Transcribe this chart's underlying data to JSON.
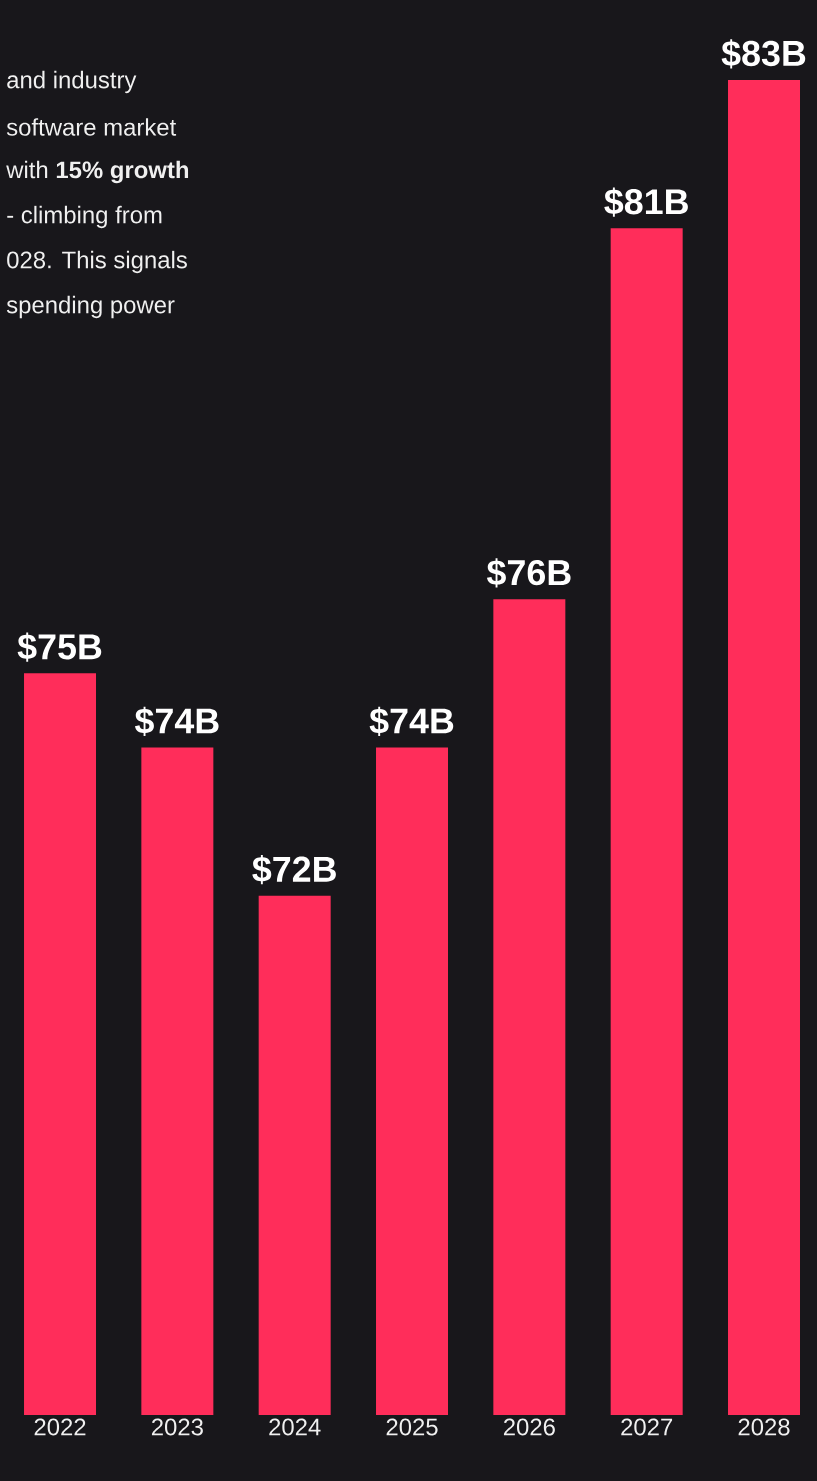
{
  "chart_data": {
    "type": "bar",
    "categories": [
      "2022",
      "2023",
      "2024",
      "2025",
      "2026",
      "2027",
      "2028"
    ],
    "values": [
      75,
      74,
      72,
      74,
      76,
      81,
      83
    ],
    "value_labels": [
      "$75B",
      "$74B",
      "$72B",
      "$74B",
      "$76B",
      "$81B",
      "$83B"
    ],
    "color": "#ff2d5a",
    "ylim": [
      65,
      83
    ],
    "tick_labels": "x",
    "annotations": [
      "and industry",
      "software market",
      "with **15% growth**",
      "- climbing from",
      "028. This signals",
      "spending power"
    ]
  }
}
